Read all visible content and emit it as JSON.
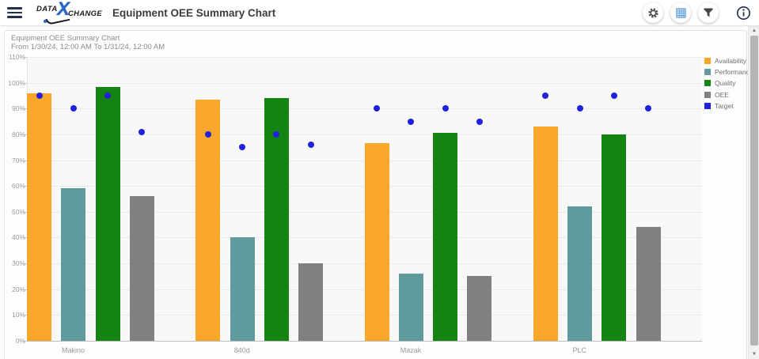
{
  "header": {
    "title": "Equipment OEE Summary Chart",
    "logo": {
      "part1": "DATA",
      "x": "X",
      "part2": "CHANGE"
    },
    "icons": [
      "settings",
      "grid-view",
      "filter",
      "info"
    ]
  },
  "colors": {
    "accent_blue": "#5b9bd5",
    "navy": "#22304f",
    "availability": "#f9a72b",
    "performance": "#5f9b9d",
    "quality": "#138313",
    "oee": "#808080",
    "target": "#2121dd"
  },
  "scrollbar": {
    "up_arrow": "▲",
    "down_arrow": "▼"
  },
  "chart_data": {
    "type": "bar",
    "title": "Equipment OEE Summary Chart",
    "subtitle": "From 1/30/24, 12:00 AM To 1/31/24, 12:00 AM",
    "categories": [
      "Makino",
      "840d",
      "Mazak",
      "PLC"
    ],
    "series": [
      {
        "name": "Availability",
        "color": "#f9a72b",
        "values": [
          96,
          93.5,
          76.5,
          83
        ]
      },
      {
        "name": "Performance",
        "color": "#5f9b9d",
        "values": [
          59,
          40,
          26,
          52
        ]
      },
      {
        "name": "Quality",
        "color": "#138313",
        "values": [
          98.5,
          94,
          80.5,
          80
        ]
      },
      {
        "name": "OEE",
        "color": "#808080",
        "values": [
          56,
          30,
          25,
          44
        ]
      }
    ],
    "target": {
      "name": "Target",
      "color": "#2121dd",
      "points": [
        [
          95,
          90,
          95,
          81
        ],
        [
          80,
          75,
          80,
          76
        ],
        [
          90,
          85,
          90,
          85
        ],
        [
          95,
          90,
          95,
          90
        ]
      ]
    },
    "ylim": [
      0,
      110
    ],
    "ytick_step": 10,
    "ytick_suffix": "%",
    "grid": true,
    "legend_position": "right"
  }
}
